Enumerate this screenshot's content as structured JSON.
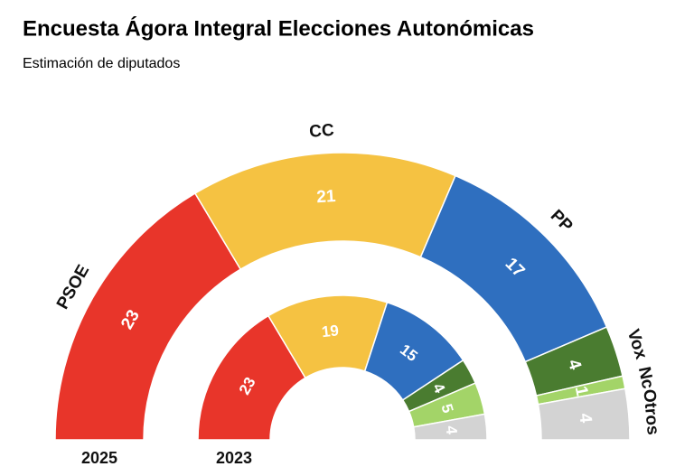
{
  "chart_data": {
    "type": "parliament",
    "title": "Encuesta Ágora Integral Elecciones Autonómicas",
    "subtitle": "Estimación de diputados",
    "categories": [
      "PSOE",
      "CC",
      "PP",
      "Vox",
      "Nc",
      "Otros"
    ],
    "colors": [
      "#e8352a",
      "#f5c242",
      "#2f6fbf",
      "#4a7c30",
      "#a3d468",
      "#d3d3d3"
    ],
    "series": [
      {
        "name": "2025",
        "values": [
          23,
          21,
          17,
          4,
          1,
          4
        ]
      },
      {
        "name": "2023",
        "values": [
          23,
          19,
          15,
          4,
          5,
          4
        ]
      }
    ]
  }
}
